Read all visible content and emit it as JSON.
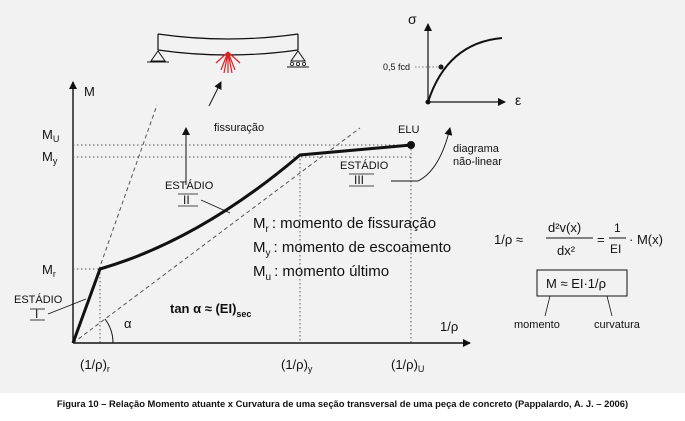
{
  "figure": {
    "axis_y_label": "M",
    "axis_x_label": "1/ρ",
    "moment_labels": {
      "mu": "M",
      "mu_sub": "U",
      "my": "M",
      "my_sub": "y",
      "mr": "M",
      "mr_sub": "r"
    },
    "curvature_labels": {
      "r": "(1/ρ)",
      "r_sub": "r",
      "y": "(1/ρ)",
      "y_sub": "y",
      "u": "(1/ρ)",
      "u_sub": "U"
    },
    "elu_label": "ELU",
    "stage1": {
      "label": "ESTÁDIO",
      "numeral": "I"
    },
    "stage2": {
      "label": "ESTÁDIO",
      "numeral": "II"
    },
    "stage3": {
      "label": "ESTÁDIO",
      "numeral": "III"
    },
    "fissuracao_label": "fissuração",
    "alpha_label": "α",
    "tan_formula": {
      "main": "tan α ≈ (EI)",
      "sub": "sec"
    },
    "definitions": [
      {
        "sym": "M",
        "sub": "r",
        "text": ": momento de fissuração"
      },
      {
        "sym": "M",
        "sub": "y",
        "text": ": momento de escoamento"
      },
      {
        "sym": "M",
        "sub": "u",
        "text": ": momento último"
      }
    ],
    "formula": {
      "lhs": "1/ρ ≈",
      "num": "d²v(x)",
      "den": "dx²",
      "eq": "=",
      "frac_num": "1",
      "frac_den": "EI",
      "rhs": "· M(x)"
    },
    "box_formula": "M ≈ EI·1/ρ",
    "momento_label": "momento",
    "curvatura_label": "curvatura",
    "inset": {
      "y_label": "σ",
      "x_label": "ε",
      "fcd_label": "0,5 fcd"
    },
    "diagrama_label": [
      "diagrama",
      "não-linear"
    ]
  },
  "caption": "Figura 10 – Relação Momento atuante x Curvatura de uma seção transversal de uma peça de concreto (Pappalardo, A. J. – 2006)"
}
